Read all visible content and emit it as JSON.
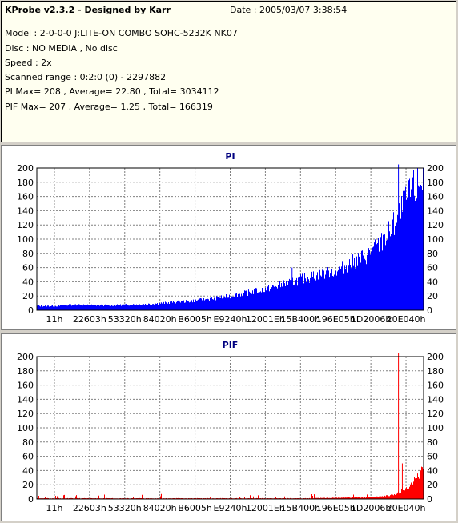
{
  "header": {
    "title": "KProbe v2.3.2 - Designed by Karr",
    "date": "Date : 2005/03/07 3:38:54",
    "model": "Model : 2-0-0-0 J:LITE-ON COMBO SOHC-5232K NK07",
    "disc": "Disc : NO MEDIA , No disc",
    "speed": "Speed : 2x",
    "range": "Scanned range : 0:2:0 (0) - 2297882",
    "pi_stats": "PI Max= 208 , Average= 22.80 , Total= 3034112",
    "pif_stats": "PIF Max= 207 , Average= 1.25 , Total= 166319"
  },
  "chart_data": [
    {
      "type": "area",
      "title": "PI",
      "color": "#0000ff",
      "ylim": [
        0,
        200
      ],
      "yticks": [
        0,
        20,
        40,
        60,
        80,
        100,
        120,
        140,
        160,
        180,
        200
      ],
      "xticks": [
        "11h",
        "22603h",
        "53320h",
        "84020h",
        "B6005h",
        "E9240h",
        "12001Eh",
        "15B400h",
        "196E05h",
        "1D2006h",
        "20E040h"
      ],
      "grid": true,
      "series": [
        {
          "x": [
            0,
            0.05,
            0.1,
            0.15,
            0.2,
            0.25,
            0.3,
            0.35,
            0.4,
            0.45,
            0.5,
            0.55,
            0.6,
            0.65,
            0.7,
            0.75,
            0.8,
            0.85,
            0.88,
            0.9,
            0.92,
            0.94,
            0.96,
            0.98,
            1.0
          ],
          "values": [
            6,
            6,
            8,
            7,
            7,
            8,
            9,
            11,
            13,
            16,
            20,
            25,
            31,
            38,
            46,
            52,
            62,
            76,
            88,
            100,
            115,
            135,
            155,
            172,
            188
          ],
          "spikes": [
            {
              "x": 0.66,
              "value": 60
            },
            {
              "x": 0.935,
              "value": 208
            }
          ]
        }
      ]
    },
    {
      "type": "area",
      "title": "PIF",
      "color": "#ff0000",
      "ylim": [
        0,
        200
      ],
      "yticks": [
        0,
        20,
        40,
        60,
        80,
        100,
        120,
        140,
        160,
        180,
        200
      ],
      "xticks": [
        "11h",
        "22603h",
        "53320h",
        "84020h",
        "B6005h",
        "E9240h",
        "12001Eh",
        "15B400h",
        "196E05h",
        "1D2006h",
        "20E040h"
      ],
      "grid": true,
      "series": [
        {
          "x": [
            0,
            0.1,
            0.2,
            0.3,
            0.4,
            0.5,
            0.6,
            0.7,
            0.8,
            0.85,
            0.88,
            0.9,
            0.92,
            0.94,
            0.96,
            0.98,
            1.0
          ],
          "values": [
            1,
            1,
            1,
            1,
            1,
            1,
            1,
            1,
            2,
            2,
            3,
            4,
            6,
            10,
            18,
            28,
            40
          ],
          "spikes": [
            {
              "x": 0.935,
              "value": 207
            },
            {
              "x": 0.945,
              "value": 50
            },
            {
              "x": 0.97,
              "value": 45
            }
          ]
        }
      ]
    }
  ]
}
